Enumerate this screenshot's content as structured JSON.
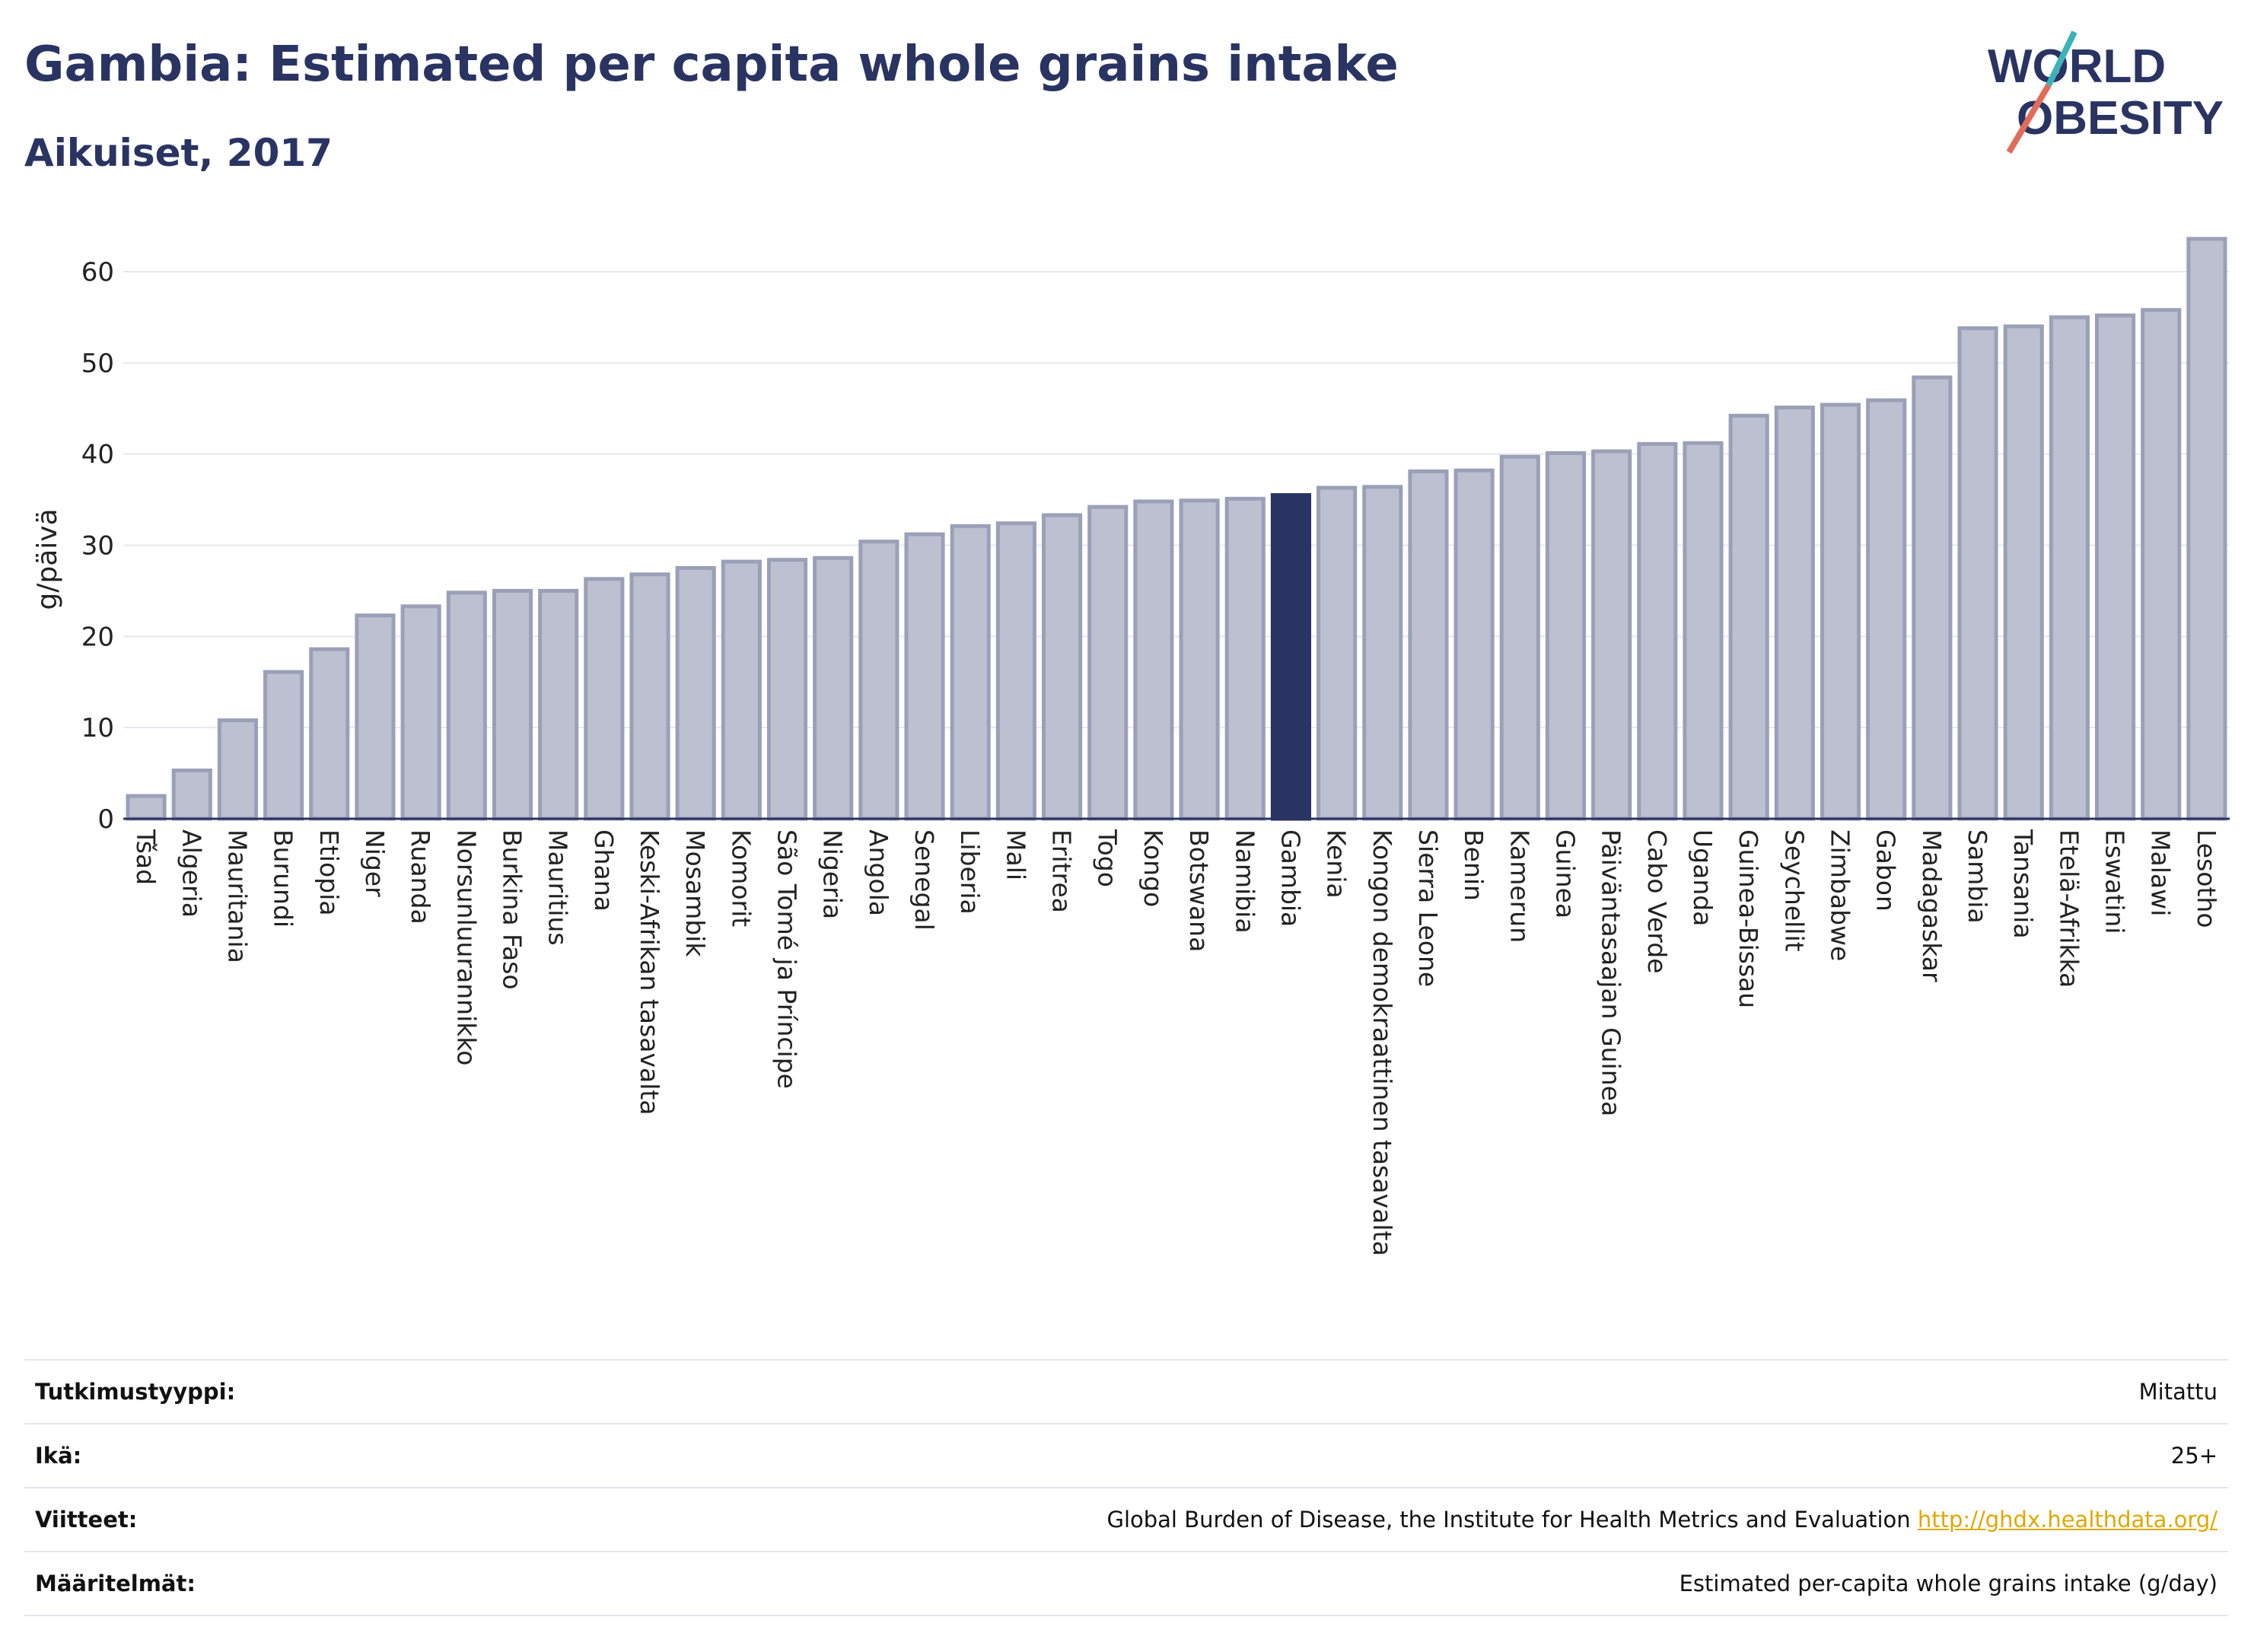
{
  "header": {
    "title": "Gambia: Estimated per capita whole grains intake",
    "subtitle": "Aikuiset, 2017"
  },
  "logo": {
    "line1": "WORLD",
    "line2": "OBESITY"
  },
  "chart_data": {
    "type": "bar",
    "ylabel": "g/päivä",
    "xlabel": "",
    "ylim": [
      0,
      65
    ],
    "yticks": [
      0,
      10,
      20,
      30,
      40,
      50,
      60
    ],
    "grid": true,
    "highlight": "Gambia",
    "colors": {
      "bar": "#bcc0d0",
      "bar_edge": "#9ba0b8",
      "highlight": "#2a3462",
      "grid": "#e6e8ee"
    },
    "categories": [
      "Tšad",
      "Algeria",
      "Mauritania",
      "Burundi",
      "Etiopia",
      "Niger",
      "Ruanda",
      "Norsunluurannikko",
      "Burkina Faso",
      "Mauritius",
      "Ghana",
      "Keski-Afrikan tasavalta",
      "Mosambik",
      "Komorit",
      "São Tomé ja Príncipe",
      "Nigeria",
      "Angola",
      "Senegal",
      "Liberia",
      "Mali",
      "Eritrea",
      "Togo",
      "Kongo",
      "Botswana",
      "Namibia",
      "Gambia",
      "Kenia",
      "Kongon demokraattinen tasavalta",
      "Sierra Leone",
      "Benin",
      "Kamerun",
      "Guinea",
      "Päiväntasaajan Guinea",
      "Cabo Verde",
      "Uganda",
      "Guinea-Bissau",
      "Seychellit",
      "Zimbabwe",
      "Gabon",
      "Madagaskar",
      "Sambia",
      "Tansania",
      "Etelä-Afrikka",
      "Eswatini",
      "Malawi",
      "Lesotho"
    ],
    "values": [
      2.5,
      5.3,
      10.8,
      16.1,
      18.6,
      22.3,
      23.3,
      24.8,
      25.0,
      25.0,
      26.3,
      26.8,
      27.5,
      28.2,
      28.4,
      28.6,
      30.4,
      31.2,
      32.1,
      32.4,
      33.3,
      34.2,
      34.8,
      34.9,
      35.1,
      35.5,
      36.3,
      36.4,
      38.1,
      38.2,
      39.7,
      40.1,
      40.3,
      41.1,
      41.2,
      44.2,
      45.1,
      45.4,
      45.9,
      48.4,
      53.8,
      54.0,
      55.0,
      55.2,
      55.8,
      63.6
    ]
  },
  "meta": {
    "study_type_label": "Tutkimustyyppi:",
    "study_type_value": "Mitattu",
    "age_label": "Ikä:",
    "age_value": "25+",
    "refs_label": "Viitteet:",
    "refs_value": "Global Burden of Disease, the Institute for Health Metrics and Evaluation",
    "refs_link": "http://ghdx.healthdata.org/",
    "defs_label": "Määritelmät:",
    "defs_value": "Estimated per-capita whole grains intake (g/day)"
  }
}
